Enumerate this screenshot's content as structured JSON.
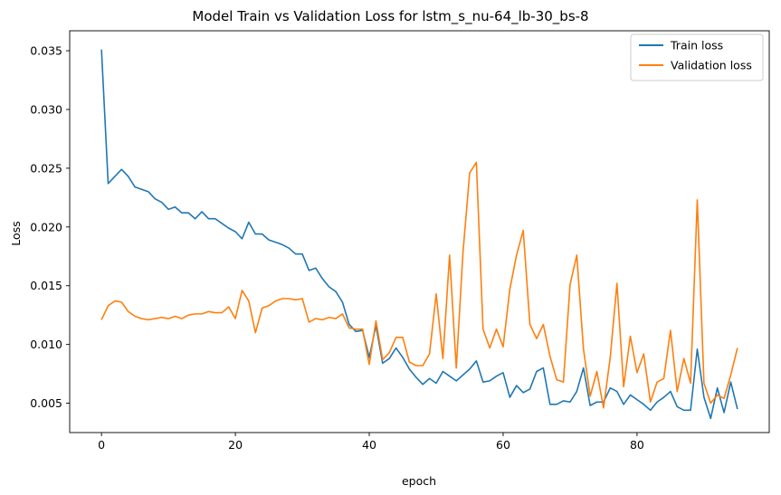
{
  "chart_data": {
    "type": "line",
    "title": "Model Train vs Validation Loss for lstm_s_nu-64_lb-30_bs-8",
    "xlabel": "epoch",
    "ylabel": "Loss",
    "xlim": [
      -4.75,
      99.75
    ],
    "ylim": [
      0.0025,
      0.0367
    ],
    "xticks": [
      0,
      20,
      40,
      60,
      80
    ],
    "yticks": [
      0.005,
      0.01,
      0.015,
      0.02,
      0.025,
      0.03,
      0.035
    ],
    "ytick_labels": [
      "0.005",
      "0.010",
      "0.015",
      "0.020",
      "0.025",
      "0.030",
      "0.035"
    ],
    "grid": false,
    "legend_position": "upper right",
    "series": [
      {
        "name": "Train loss",
        "color": "#1f77b4",
        "values": [
          0.0351,
          0.0237,
          0.0243,
          0.0249,
          0.0243,
          0.0234,
          0.0232,
          0.023,
          0.0224,
          0.0221,
          0.0215,
          0.0217,
          0.0212,
          0.0212,
          0.0207,
          0.0213,
          0.0207,
          0.0207,
          0.0203,
          0.0199,
          0.0196,
          0.019,
          0.0204,
          0.0194,
          0.0194,
          0.0189,
          0.0187,
          0.0185,
          0.0182,
          0.0177,
          0.0177,
          0.0163,
          0.0165,
          0.0156,
          0.0149,
          0.0145,
          0.0136,
          0.0117,
          0.0111,
          0.0112,
          0.0089,
          0.0116,
          0.0084,
          0.0088,
          0.0097,
          0.0089,
          0.0079,
          0.0072,
          0.0066,
          0.0071,
          0.0067,
          0.0077,
          0.0073,
          0.0069,
          0.0074,
          0.0079,
          0.0086,
          0.0068,
          0.0069,
          0.0073,
          0.0076,
          0.0055,
          0.0065,
          0.0059,
          0.0062,
          0.0077,
          0.008,
          0.0049,
          0.0049,
          0.0052,
          0.0051,
          0.006,
          0.008,
          0.0048,
          0.0051,
          0.0051,
          0.0063,
          0.006,
          0.0049,
          0.0057,
          0.0053,
          0.0049,
          0.0044,
          0.0051,
          0.0055,
          0.006,
          0.0047,
          0.0044,
          0.0044,
          0.0096,
          0.0055,
          0.0037,
          0.0063,
          0.0042,
          0.0068,
          0.0045
        ]
      },
      {
        "name": "Validation loss",
        "color": "#ff7f0e",
        "values": [
          0.0121,
          0.0133,
          0.0137,
          0.0136,
          0.0128,
          0.0124,
          0.0122,
          0.0121,
          0.0122,
          0.0123,
          0.0122,
          0.0124,
          0.0122,
          0.0125,
          0.0126,
          0.0126,
          0.0128,
          0.0127,
          0.0127,
          0.0132,
          0.0122,
          0.0146,
          0.0137,
          0.011,
          0.0131,
          0.0133,
          0.0137,
          0.0139,
          0.0139,
          0.0138,
          0.0139,
          0.0119,
          0.0122,
          0.0121,
          0.0123,
          0.0122,
          0.0126,
          0.0114,
          0.0113,
          0.0113,
          0.0083,
          0.012,
          0.0087,
          0.0093,
          0.0106,
          0.0106,
          0.0085,
          0.0082,
          0.0082,
          0.0092,
          0.0143,
          0.0088,
          0.0176,
          0.008,
          0.0178,
          0.0246,
          0.0255,
          0.0113,
          0.0097,
          0.0113,
          0.0098,
          0.0147,
          0.0176,
          0.0197,
          0.0117,
          0.0105,
          0.0117,
          0.009,
          0.007,
          0.0068,
          0.0151,
          0.0176,
          0.0096,
          0.0056,
          0.0077,
          0.0046,
          0.0089,
          0.0152,
          0.0064,
          0.0107,
          0.0076,
          0.0092,
          0.0051,
          0.0068,
          0.0071,
          0.0112,
          0.006,
          0.0088,
          0.0067,
          0.0223,
          0.0067,
          0.005,
          0.0057,
          0.0054,
          0.0074,
          0.0097
        ]
      }
    ]
  }
}
